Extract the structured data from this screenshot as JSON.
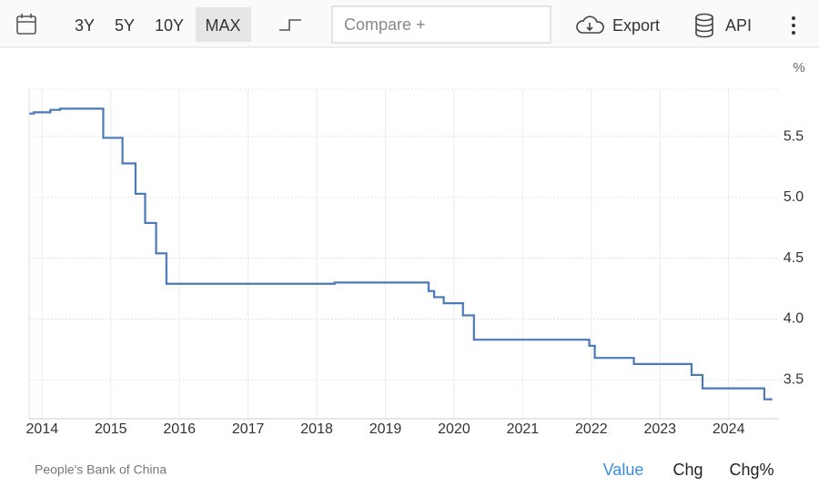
{
  "toolbar": {
    "ranges": [
      "3Y",
      "5Y",
      "10Y",
      "MAX"
    ],
    "compare": "Compare +",
    "export": "Export",
    "api": "API"
  },
  "chart_data": {
    "type": "step-line",
    "y_unit": "%",
    "x": [
      2013.83,
      2013.88,
      2014.12,
      2014.26,
      2014.45,
      2014.89,
      2015.17,
      2015.36,
      2015.5,
      2015.66,
      2015.81,
      2018.26,
      2019.63,
      2019.71,
      2019.85,
      2020.13,
      2020.29,
      2021.97,
      2022.05,
      2022.62,
      2023.46,
      2023.62,
      2024.52,
      2024.62
    ],
    "values": [
      5.69,
      5.7,
      5.72,
      5.73,
      5.73,
      5.49,
      5.28,
      5.03,
      4.79,
      4.54,
      4.29,
      4.3,
      4.23,
      4.18,
      4.13,
      4.03,
      3.83,
      3.78,
      3.68,
      3.63,
      3.54,
      3.43,
      3.34,
      3.34
    ],
    "color": "#4a7ab8",
    "xlim": [
      2013.81,
      2024.72
    ],
    "xticks": [
      2014,
      2015,
      2016,
      2017,
      2018,
      2019,
      2020,
      2021,
      2022,
      2023,
      2024
    ],
    "ylim": [
      3.18,
      5.89
    ],
    "yticks": [
      3.5,
      {
        "value": 4,
        "label": "4.0"
      },
      4.5,
      {
        "value": 5,
        "label": "5.0"
      },
      5.5
    ],
    "grid": true
  },
  "footer": {
    "source": "People's Bank of China",
    "tabs": [
      "Value",
      "Chg",
      "Chg%"
    ]
  }
}
